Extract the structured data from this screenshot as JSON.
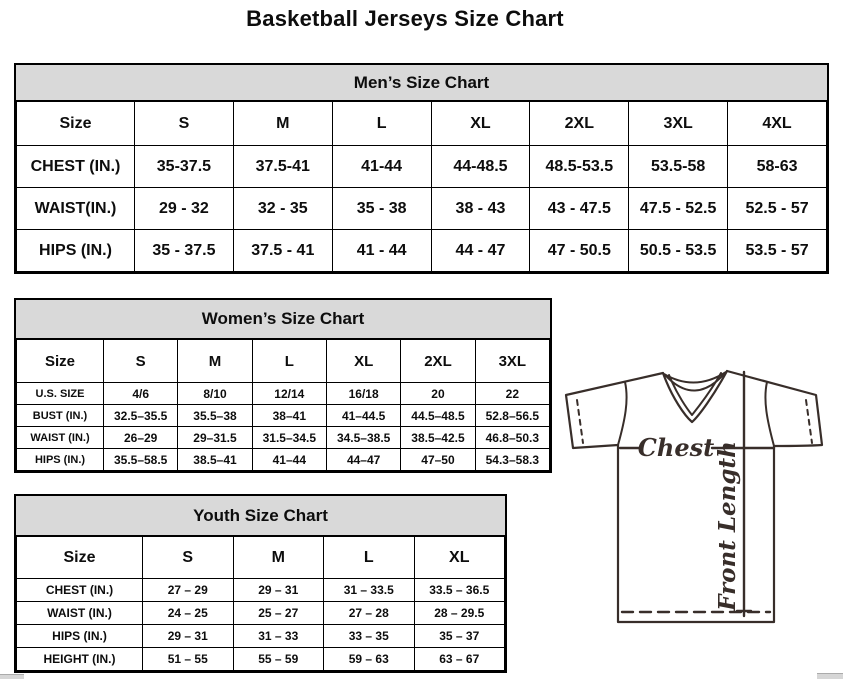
{
  "page": {
    "title": "Basketball Jerseys Size Chart"
  },
  "colors": {
    "header_band": "#d9d9d9",
    "text": "#0d0d0d",
    "jersey_line": "#382e2a"
  },
  "tables": {
    "men": {
      "title": "Men’s Size Chart",
      "columns": [
        "Size",
        "S",
        "M",
        "L",
        "XL",
        "2XL",
        "3XL",
        "4XL"
      ],
      "rows": [
        [
          "CHEST (IN.)",
          "35-37.5",
          "37.5-41",
          "41-44",
          "44-48.5",
          "48.5-53.5",
          "53.5-58",
          "58-63"
        ],
        [
          "WAIST(IN.)",
          "29 - 32",
          "32 - 35",
          "35 - 38",
          "38 - 43",
          "43 - 47.5",
          "47.5 - 52.5",
          "52.5 - 57"
        ],
        [
          "HIPS (IN.)",
          "35 - 37.5",
          "37.5 - 41",
          "41 - 44",
          "44 - 47",
          "47 - 50.5",
          "50.5 - 53.5",
          "53.5 - 57"
        ]
      ]
    },
    "women": {
      "title": "Women’s Size Chart",
      "columns": [
        "Size",
        "S",
        "M",
        "L",
        "XL",
        "2XL",
        "3XL"
      ],
      "rows": [
        [
          "U.S. SIZE",
          "4/6",
          "8/10",
          "12/14",
          "16/18",
          "20",
          "22"
        ],
        [
          "BUST (IN.)",
          "32.5–35.5",
          "35.5–38",
          "38–41",
          "41–44.5",
          "44.5–48.5",
          "52.8–56.5"
        ],
        [
          "WAIST (IN.)",
          "26–29",
          "29–31.5",
          "31.5–34.5",
          "34.5–38.5",
          "38.5–42.5",
          "46.8–50.3"
        ],
        [
          "HIPS (IN.)",
          "35.5–58.5",
          "38.5–41",
          "41–44",
          "44–47",
          "47–50",
          "54.3–58.3"
        ]
      ]
    },
    "youth": {
      "title": "Youth Size Chart",
      "columns": [
        "Size",
        "S",
        "M",
        "L",
        "XL"
      ],
      "rows": [
        [
          "CHEST (IN.)",
          "27 – 29",
          "29 – 31",
          "31 – 33.5",
          "33.5 – 36.5"
        ],
        [
          "WAIST (IN.)",
          "24 – 25",
          "25 – 27",
          "27 – 28",
          "28 – 29.5"
        ],
        [
          "HIPS (IN.)",
          "29 – 31",
          "31 – 33",
          "33 – 35",
          "35 – 37"
        ],
        [
          "HEIGHT (IN.)",
          "51 – 55",
          "55 – 59",
          "59 – 63",
          "63 – 67"
        ]
      ]
    }
  },
  "diagram": {
    "chest_label": "Chest",
    "front_length_label": "Front Length"
  }
}
